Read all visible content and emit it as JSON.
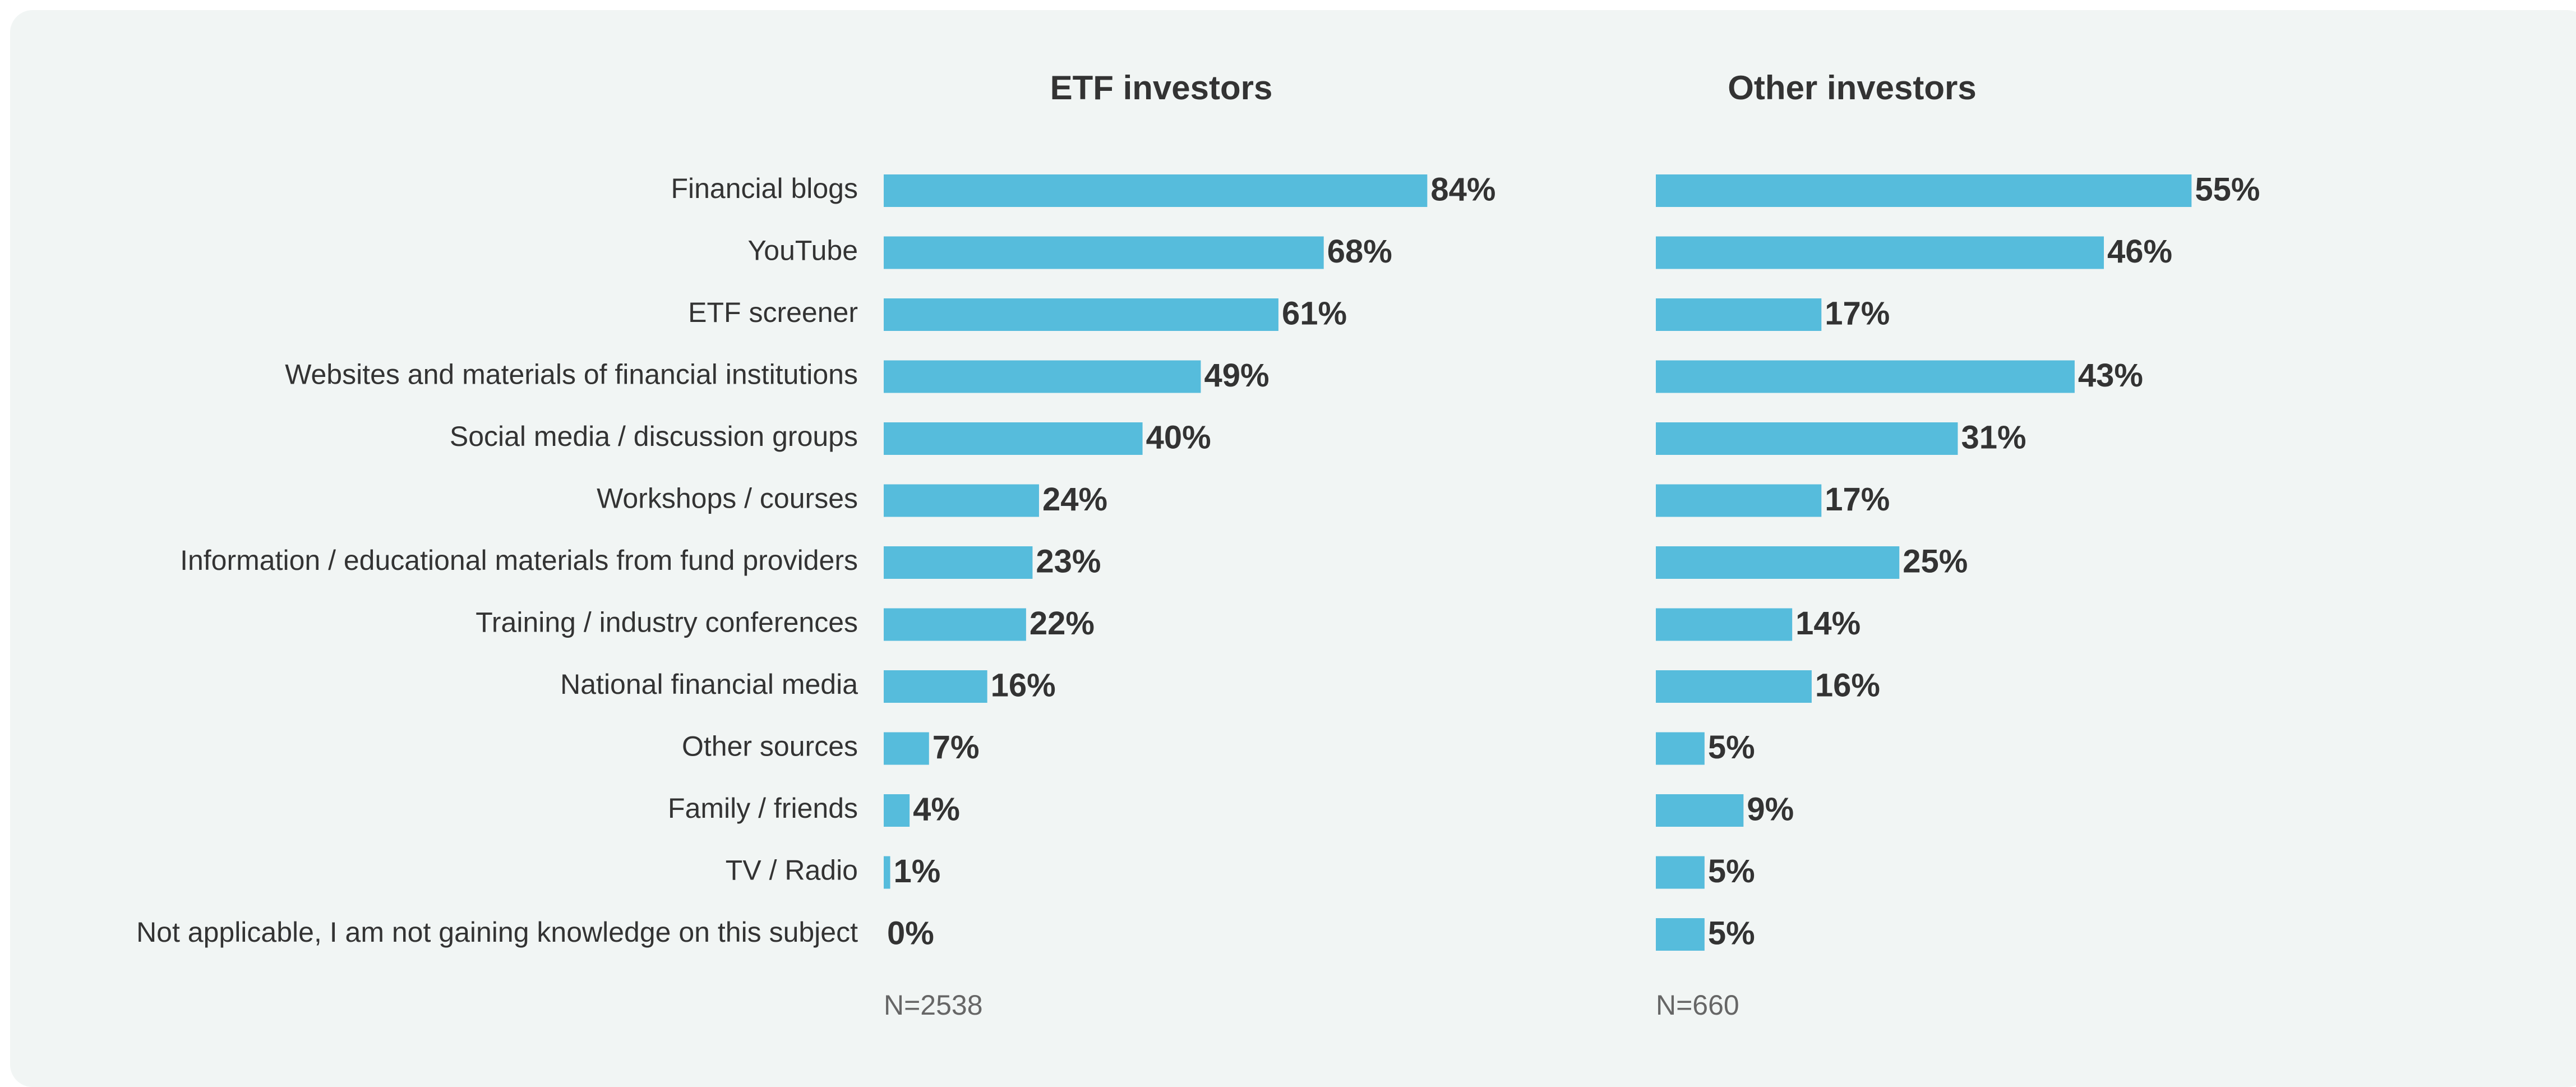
{
  "chart_data": [
    {
      "type": "bar",
      "orientation": "horizontal",
      "title": "ETF investors",
      "color": "#56bcdc",
      "xlim": [
        0,
        100
      ],
      "categories": [
        "Financial blogs",
        "YouTube",
        "ETF screener",
        "Websites and materials of financial institutions",
        "Social media / discussion groups",
        "Workshops / courses",
        "Information / educational materials from fund providers",
        "Training / industry conferences",
        "National financial media",
        "Other sources",
        "Family / friends",
        "TV / Radio",
        "Not applicable, I am not gaining knowledge on this subject"
      ],
      "values": [
        84,
        68,
        61,
        49,
        40,
        24,
        23,
        22,
        16,
        7,
        4,
        1,
        0
      ],
      "value_labels": [
        "84%",
        "68%",
        "61%",
        "49%",
        "40%",
        "24%",
        "23%",
        "22%",
        "16%",
        "7%",
        "4%",
        "1%",
        "0%"
      ],
      "note": "N=2538"
    },
    {
      "type": "bar",
      "orientation": "horizontal",
      "title": "Other investors",
      "color": "#56bcdc",
      "xlim": [
        0,
        100
      ],
      "values": [
        55,
        46,
        17,
        43,
        31,
        17,
        25,
        14,
        16,
        5,
        9,
        5,
        5
      ],
      "value_labels": [
        "55%",
        "46%",
        "17%",
        "43%",
        "31%",
        "17%",
        "25%",
        "14%",
        "16%",
        "5%",
        "9%",
        "5%",
        "5%"
      ],
      "note": "N=660"
    }
  ]
}
